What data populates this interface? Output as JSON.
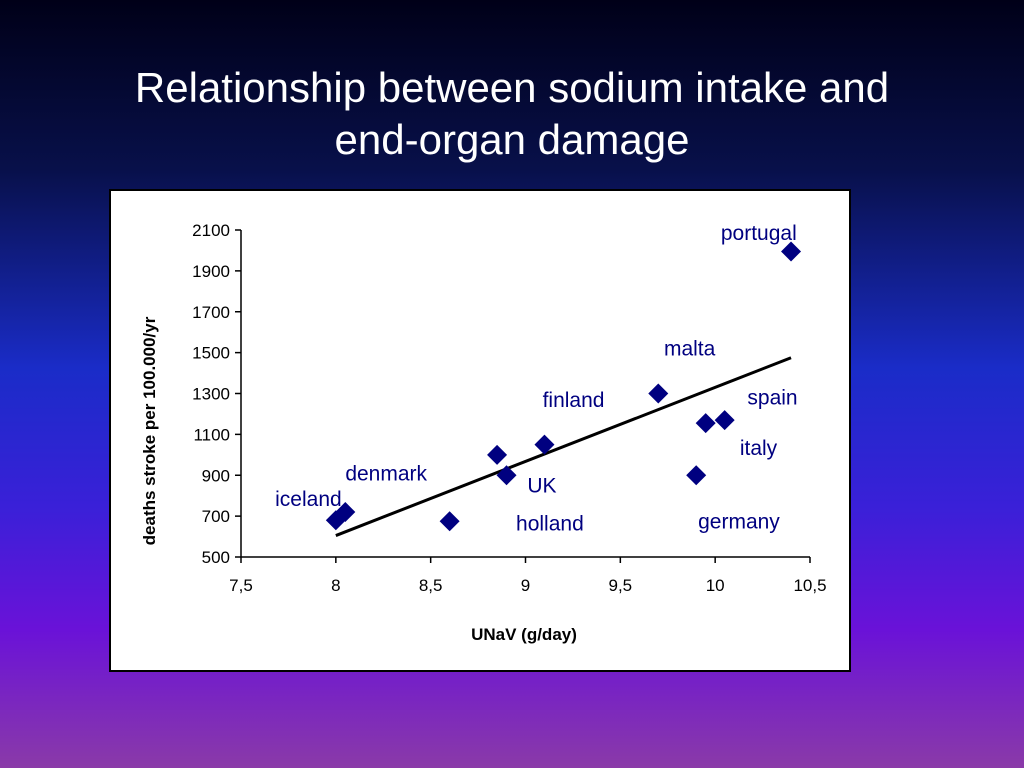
{
  "slide": {
    "title_line1": "Relationship between sodium intake and",
    "title_line2": "end-organ damage"
  },
  "colors": {
    "marker": "#000080",
    "label": "#000080",
    "trendline": "#000000",
    "axis": "#000000"
  },
  "chart_data": {
    "type": "scatter",
    "title": "",
    "xlabel": "UNaV (g/day)",
    "ylabel": "deaths stroke per 100.000/yr",
    "xlim": [
      7.5,
      10.5
    ],
    "ylim": [
      500,
      2100
    ],
    "xticks": [
      7.5,
      8,
      8.5,
      9,
      9.5,
      10,
      10.5
    ],
    "xtick_labels": [
      "7,5",
      "8",
      "8,5",
      "9",
      "9,5",
      "10",
      "10,5"
    ],
    "yticks": [
      500,
      700,
      900,
      1100,
      1300,
      1500,
      1700,
      1900,
      2100
    ],
    "ytick_labels": [
      "500",
      "700",
      "900",
      "1100",
      "1300",
      "1500",
      "1700",
      "1900",
      "2100"
    ],
    "grid": false,
    "legend": "none",
    "marker": "diamond",
    "points": [
      {
        "x": 8.0,
        "y": 680
      },
      {
        "x": 8.05,
        "y": 720
      },
      {
        "x": 8.6,
        "y": 675
      },
      {
        "x": 8.85,
        "y": 1000
      },
      {
        "x": 8.9,
        "y": 900
      },
      {
        "x": 9.1,
        "y": 1050
      },
      {
        "x": 9.7,
        "y": 1300
      },
      {
        "x": 9.9,
        "y": 900
      },
      {
        "x": 9.95,
        "y": 1155
      },
      {
        "x": 10.05,
        "y": 1170
      },
      {
        "x": 10.4,
        "y": 1995
      }
    ],
    "point_labels": [
      {
        "text": "iceland",
        "x": 7.68,
        "y": 750
      },
      {
        "text": "denmark",
        "x": 8.05,
        "y": 875
      },
      {
        "text": "holland",
        "x": 8.95,
        "y": 630
      },
      {
        "text": "UK",
        "x": 9.01,
        "y": 815
      },
      {
        "text": "finland",
        "x": 9.09,
        "y": 1235
      },
      {
        "text": "malta",
        "x": 9.73,
        "y": 1485
      },
      {
        "text": "spain",
        "x": 10.17,
        "y": 1245
      },
      {
        "text": "italy",
        "x": 10.13,
        "y": 1000
      },
      {
        "text": "germany",
        "x": 9.91,
        "y": 640
      },
      {
        "text": "portugal",
        "x": 10.03,
        "y": 2050
      }
    ],
    "trendline": {
      "x1": 8.0,
      "y1": 605,
      "x2": 10.4,
      "y2": 1475
    }
  }
}
